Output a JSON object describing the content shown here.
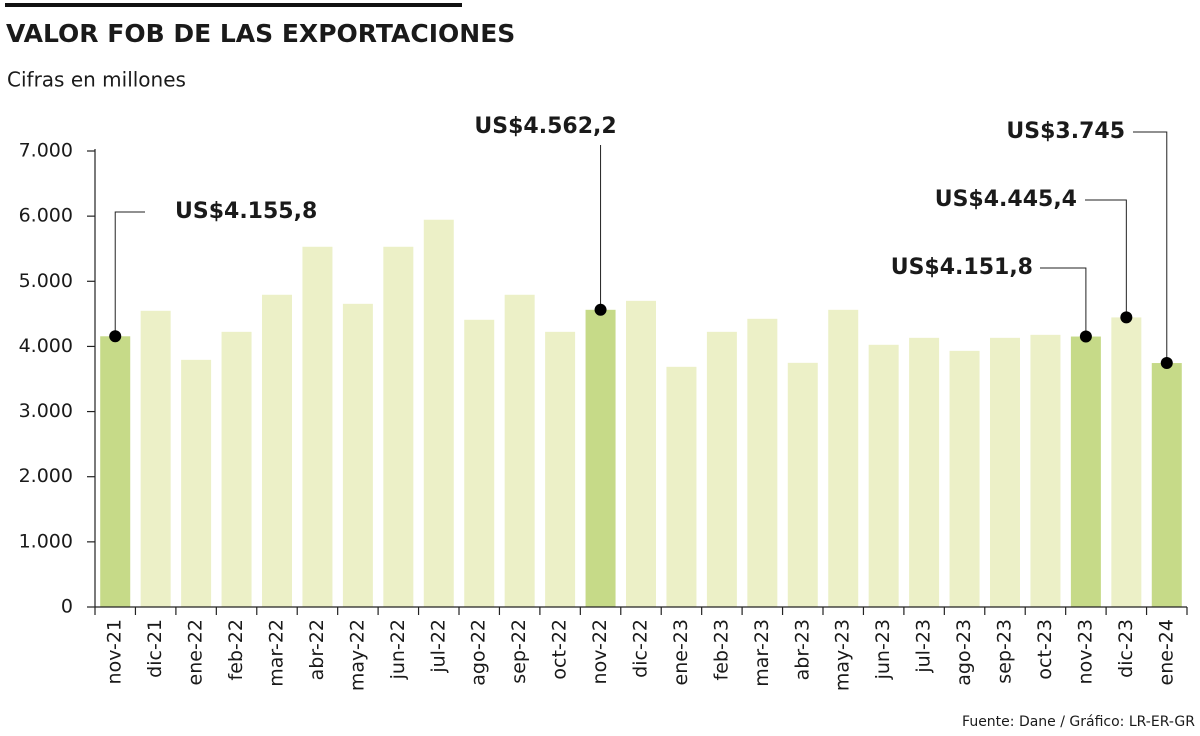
{
  "chart_data": {
    "type": "bar",
    "title": "VALOR FOB DE LAS EXPORTACIONES",
    "subtitle": "Cifras en millones",
    "source": "Fuente: Dane / Gráfico: LR-ER-GR",
    "categories": [
      "nov-21",
      "dic-21",
      "ene-22",
      "feb-22",
      "mar-22",
      "abr-22",
      "may-22",
      "jun-22",
      "jul-22",
      "ago-22",
      "sep-22",
      "oct-22",
      "nov-22",
      "dic-22",
      "ene-23",
      "feb-23",
      "mar-23",
      "abr-23",
      "may-23",
      "jun-23",
      "jul-23",
      "ago-23",
      "sep-23",
      "oct-23",
      "nov-23",
      "dic-23",
      "ene-24"
    ],
    "values": [
      4155.8,
      4547,
      3794,
      4224,
      4793,
      5530,
      4654,
      5530,
      5945,
      4409,
      4793,
      4224,
      4562.2,
      4700,
      3687,
      4224,
      4424,
      3748,
      4562,
      4025,
      4132,
      3932,
      4132,
      4178,
      4151.8,
      4445.4,
      3745
    ],
    "value_labels": [
      "US$4.155,8",
      null,
      null,
      null,
      null,
      null,
      null,
      null,
      null,
      null,
      null,
      null,
      "US$4.562,2",
      null,
      null,
      null,
      null,
      null,
      null,
      null,
      null,
      null,
      null,
      null,
      "US$4.151,8",
      "US$4.445,4",
      "US$3.745"
    ],
    "colors": [
      "#c6da88",
      "#ecf0c7",
      "#ecf0c7",
      "#ecf0c7",
      "#ecf0c7",
      "#ecf0c7",
      "#ecf0c7",
      "#ecf0c7",
      "#ecf0c7",
      "#ecf0c7",
      "#ecf0c7",
      "#ecf0c7",
      "#c6da88",
      "#ecf0c7",
      "#ecf0c7",
      "#ecf0c7",
      "#ecf0c7",
      "#ecf0c7",
      "#ecf0c7",
      "#ecf0c7",
      "#ecf0c7",
      "#ecf0c7",
      "#ecf0c7",
      "#ecf0c7",
      "#c6da88",
      "#ecf0c7",
      "#c6da88"
    ],
    "ylim": [
      0,
      7000
    ],
    "yticks": [
      0,
      {
        "value": 1000,
        "label": "1.000"
      },
      {
        "value": 2000,
        "label": "2.000"
      },
      {
        "value": 3000,
        "label": "3.000"
      },
      {
        "value": 4000,
        "label": "4.000"
      },
      {
        "value": 5000,
        "label": "5.000"
      },
      {
        "value": 6000,
        "label": "6.000"
      },
      {
        "value": 7000,
        "label": "7.000"
      }
    ]
  }
}
